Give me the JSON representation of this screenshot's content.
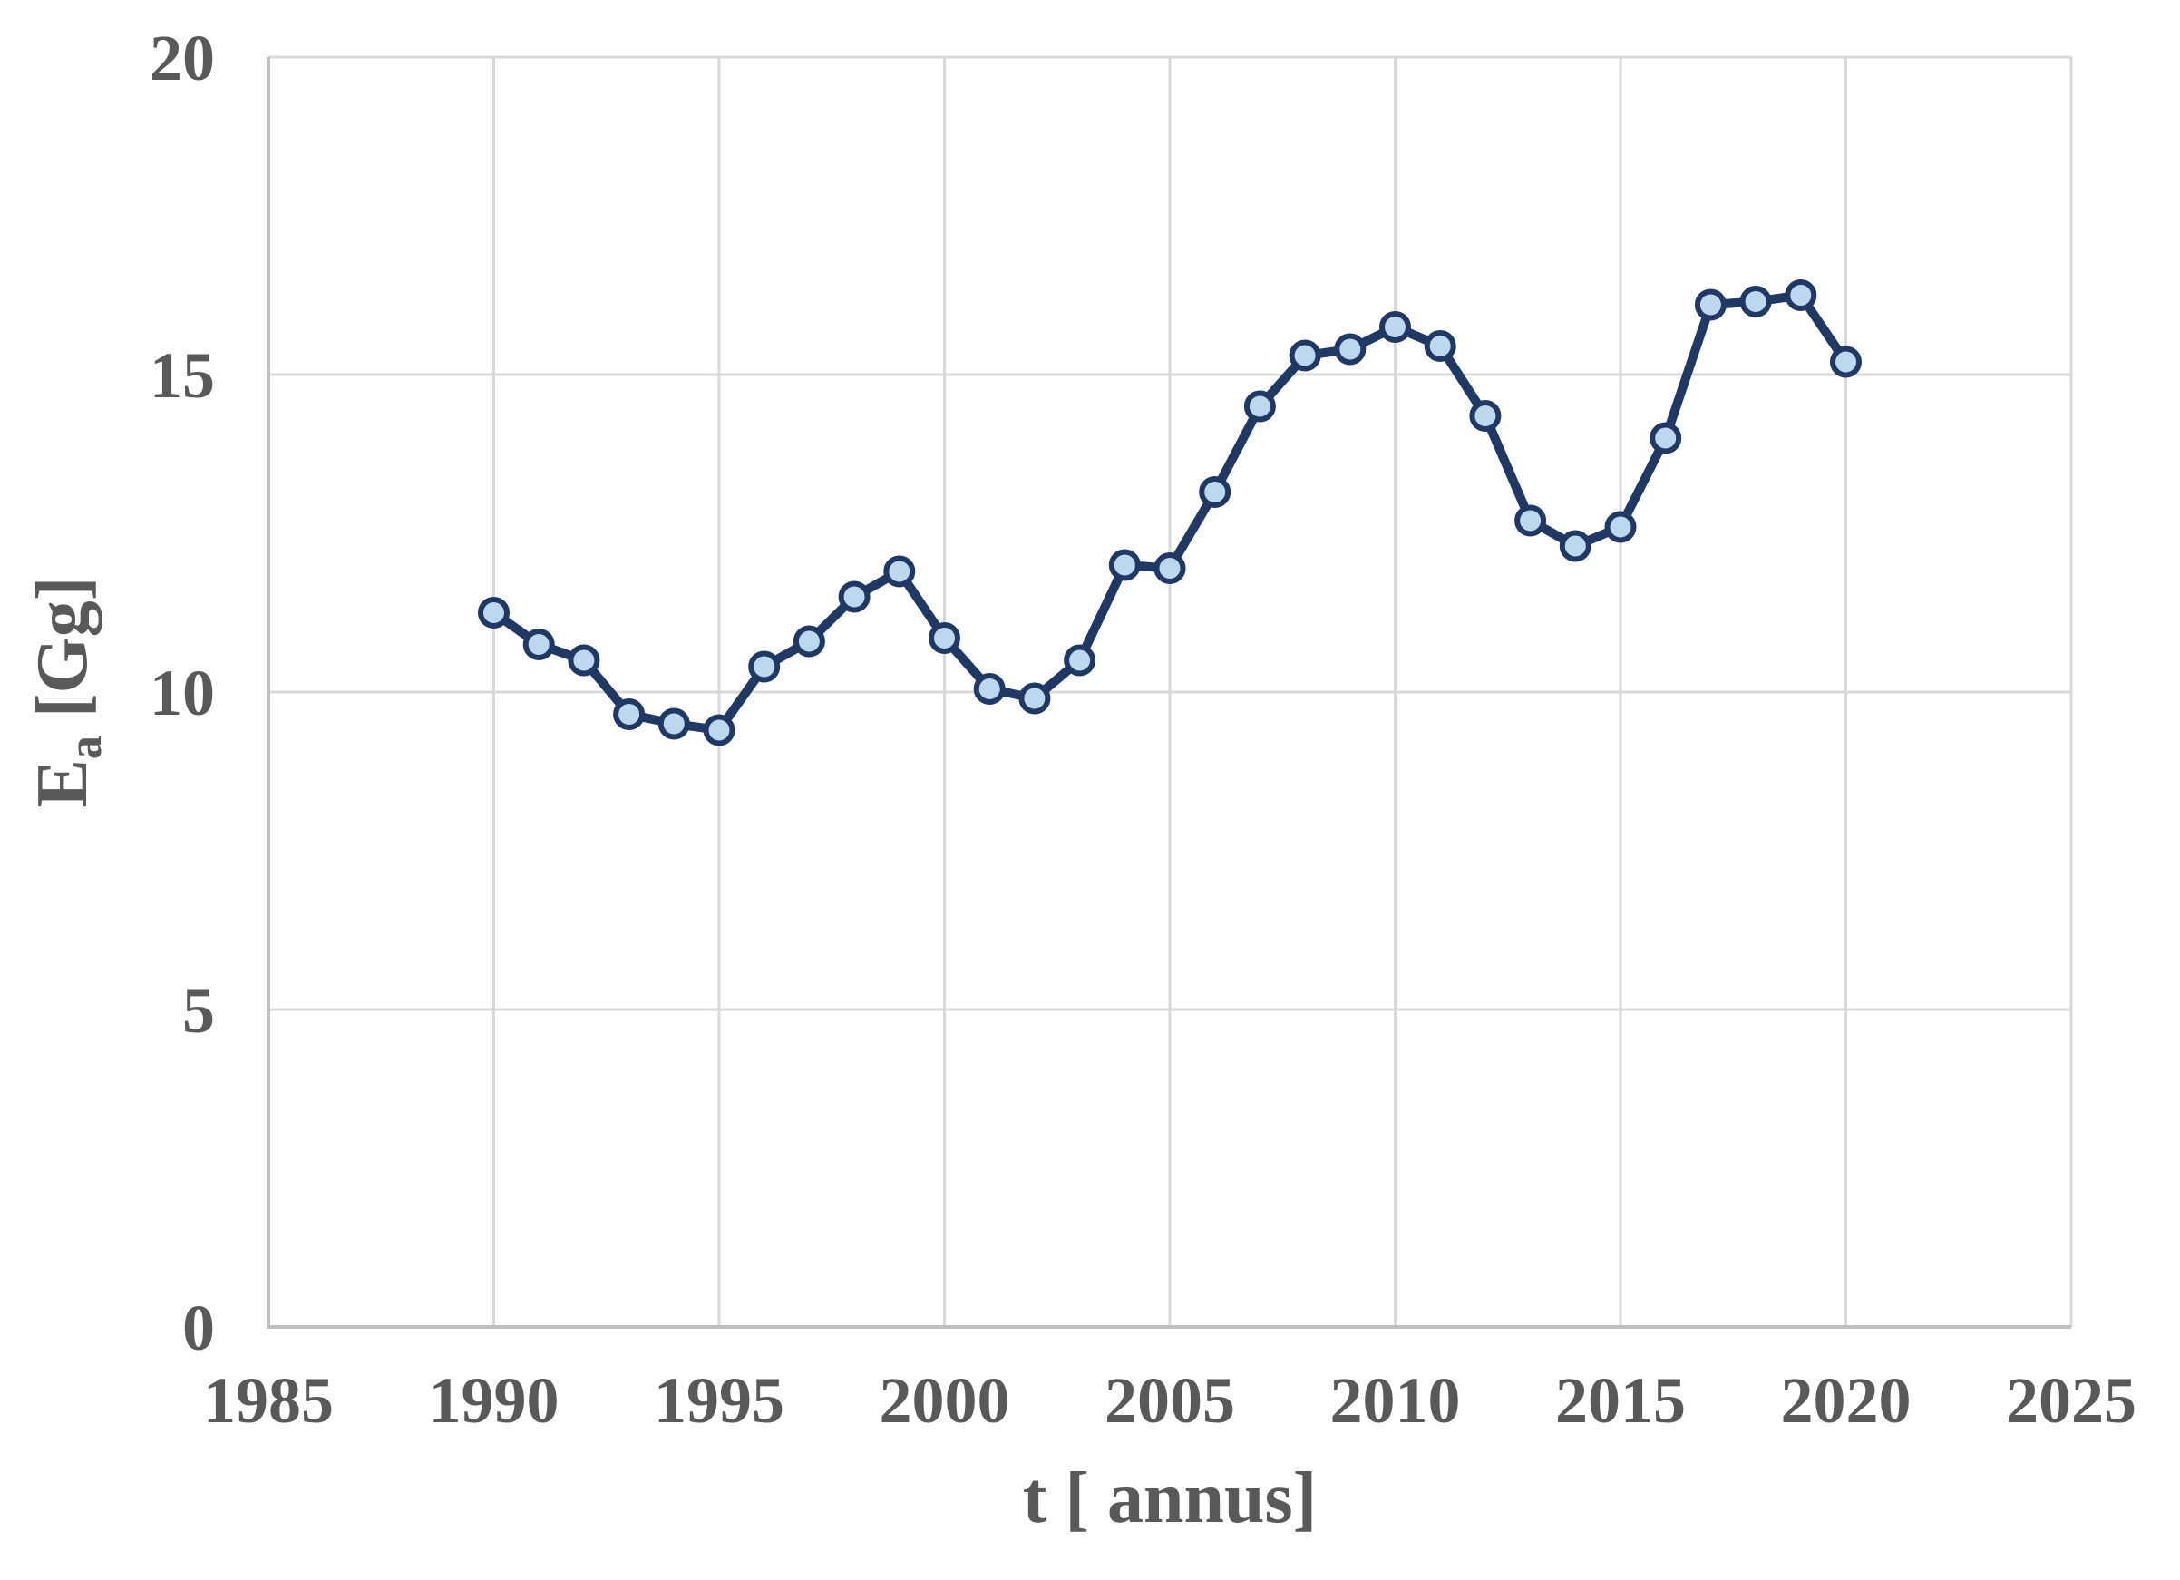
{
  "page": {
    "background_color": "#FFFFFF"
  },
  "chart_data": {
    "type": "line",
    "title": "",
    "xlabel": "t [ annus]",
    "ylabel": {
      "base": "E",
      "subscript": "a",
      "unit": " [Gg]"
    },
    "xlim": [
      1985,
      2025
    ],
    "ylim": [
      0,
      20
    ],
    "x_ticks": [
      1985,
      1990,
      1995,
      2000,
      2005,
      2010,
      2015,
      2020,
      2025
    ],
    "y_ticks": [
      0,
      5,
      10,
      15,
      20
    ],
    "grid": true,
    "legend_position": "none",
    "x": [
      1990,
      1991,
      1992,
      1993,
      1994,
      1995,
      1996,
      1997,
      1998,
      1999,
      2000,
      2001,
      2002,
      2003,
      2004,
      2005,
      2006,
      2007,
      2008,
      2009,
      2010,
      2011,
      2012,
      2013,
      2014,
      2015,
      2016,
      2017,
      2018,
      2019,
      2020
    ],
    "values": [
      11.25,
      10.75,
      10.5,
      9.65,
      9.5,
      9.4,
      10.4,
      10.8,
      11.5,
      11.9,
      10.85,
      10.05,
      9.9,
      10.5,
      12.0,
      11.95,
      13.15,
      14.5,
      15.3,
      15.4,
      15.75,
      15.45,
      14.35,
      12.7,
      12.3,
      12.6,
      14.0,
      16.1,
      16.15,
      16.25,
      15.2
    ],
    "style": {
      "line_color": "#1F3864",
      "marker_fill": "#BDD7EE",
      "marker_stroke": "#1F3864",
      "gridline_color": "#D9D9D9",
      "axis_line_color": "#BFBFBF",
      "tick_label_color": "#595959",
      "axis_title_color": "#595959"
    }
  }
}
